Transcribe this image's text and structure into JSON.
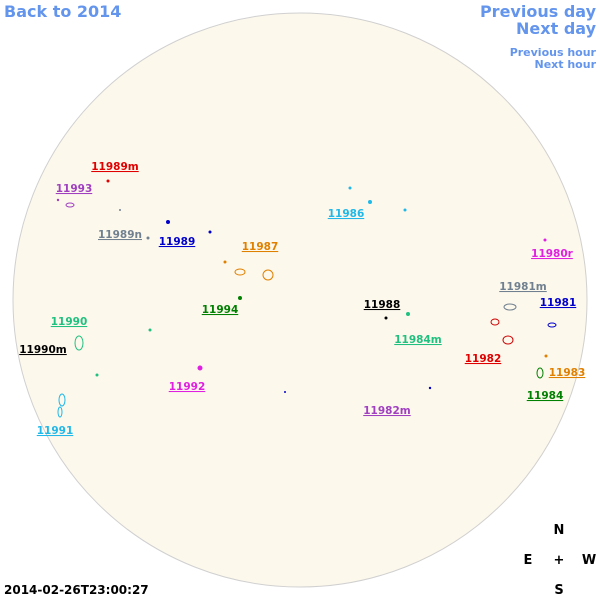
{
  "nav": {
    "back": "Back to 2014",
    "previous_day": "Previous day",
    "next_day": "Next day",
    "previous_hour": "Previous hour",
    "next_hour": "Next hour"
  },
  "regions": [
    {
      "label": "11989m"
    },
    {
      "label": "11993"
    },
    {
      "label": "11989n"
    },
    {
      "label": "11989"
    },
    {
      "label": "11987"
    },
    {
      "label": "11986"
    },
    {
      "label": "11980r"
    },
    {
      "label": "11981m"
    },
    {
      "label": "11981"
    },
    {
      "label": "11988"
    },
    {
      "label": "11994"
    },
    {
      "label": "11990"
    },
    {
      "label": "11984m"
    },
    {
      "label": "11990m"
    },
    {
      "label": "11982"
    },
    {
      "label": "11983"
    },
    {
      "label": "11992"
    },
    {
      "label": "11984"
    },
    {
      "label": "11982m"
    },
    {
      "label": "11991"
    }
  ],
  "timestamp": "2014-02-26T23:00:27",
  "compass": {
    "north": "N",
    "east": "E",
    "center": "+",
    "west": "W",
    "south": "S"
  }
}
